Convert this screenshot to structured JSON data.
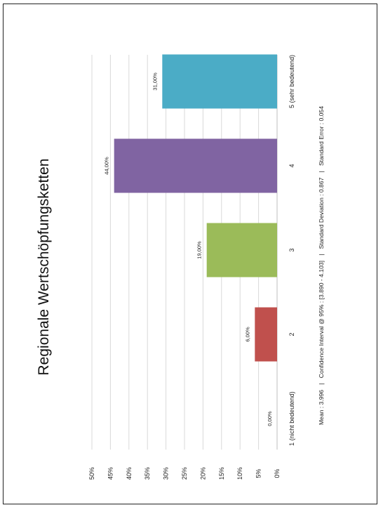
{
  "chart_data": {
    "type": "bar",
    "title": "Regionale Wertschöpfungsketten",
    "categories": [
      "1 (nicht bedeutend)",
      "2",
      "3",
      "4",
      "5 (sehr bedeutend)"
    ],
    "values": [
      0,
      6,
      19,
      44,
      31
    ],
    "data_labels": [
      "0,00%",
      "6,00%",
      "19,00%",
      "44,00%",
      "31,00%"
    ],
    "colors": [
      "#4f81bd",
      "#c0504d",
      "#9bbb59",
      "#8064a2",
      "#4bacc6"
    ],
    "y_ticks": [
      "0%",
      "5%",
      "10%",
      "15%",
      "20%",
      "25%",
      "30%",
      "35%",
      "40%",
      "45%",
      "50%"
    ],
    "ylim": [
      0,
      50
    ],
    "grid": true,
    "orientation": "rotated 90° counter-clockwise (page landscape)",
    "stats": "Mean : 3.996   |   Confidence Interval @ 95% : [3.890 - 4.103]   |   Standard Deviation : 0.867   |   Standard Error : 0.054"
  }
}
